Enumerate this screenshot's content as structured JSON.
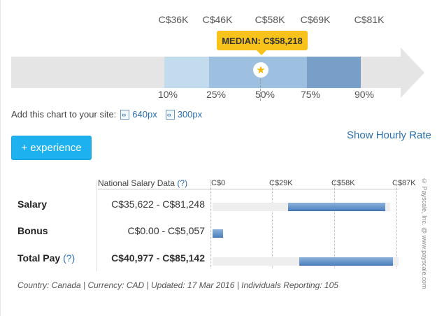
{
  "percentile_chart": {
    "amounts": [
      "C$36K",
      "C$46K",
      "C$58K",
      "C$69K",
      "C$81K"
    ],
    "percentiles": [
      "10%",
      "25%",
      "50%",
      "75%",
      "90%"
    ],
    "median_label": "MEDIAN: C$58,218",
    "median_icon": "star-icon",
    "band_colors": [
      "#c2dcee",
      "#9dc0e0",
      "#9dc0e0",
      "#779fc7"
    ]
  },
  "embed": {
    "label": "Add this chart to your site:",
    "link_640": "640px",
    "link_300": "300px",
    "icon": "embed-code-icon"
  },
  "show_hourly_label": "Show Hourly Rate",
  "experience_button_label": "+ experience",
  "salary_table": {
    "column_header": "National Salary Data",
    "column_header_help": "(?)",
    "scale": [
      "C$0",
      "C$29K",
      "C$58K",
      "C$87K"
    ],
    "scale_max": 87000,
    "rows": [
      {
        "label": "Salary",
        "help": "",
        "range": "C$35,622 - C$81,248",
        "min": 35622,
        "max": 81248,
        "bold": false
      },
      {
        "label": "Bonus",
        "help": "",
        "range": "C$0.00 - C$5,057",
        "min": 0,
        "max": 5057,
        "bold": false
      },
      {
        "label": "Total Pay",
        "help": "(?)",
        "range": "C$40,977 - C$85,142",
        "min": 40977,
        "max": 85142,
        "bold": true
      }
    ],
    "bar_color": "#4f84c0",
    "track_color": "#eeeeee"
  },
  "footer": "Country: Canada | Currency: CAD | Updated: 17 Mar 2016 | Individuals Reporting: 105",
  "copyright": "© Payscale, Inc. @ www.payscale.com"
}
